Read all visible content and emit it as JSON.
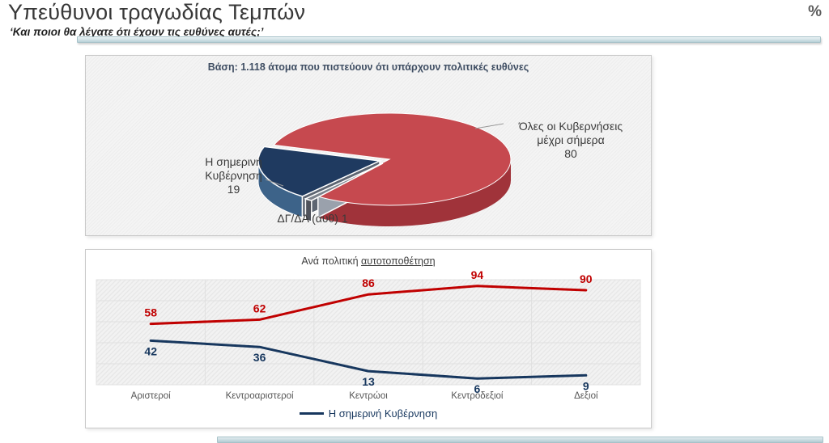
{
  "header": {
    "title": "Υπεύθυνοι τραγωδίας Τεμπών",
    "subtitle": "‘Και ποιοι θα λέγατε ότι έχουν τις ευθύνες αυτές;’",
    "unit_label": "%"
  },
  "pie_panel": {
    "base_note": "Βάση: 1.118 άτομα που πιστεύουν ότι υπάρχουν πολιτικές ευθύνες",
    "labels": {
      "right_lines": [
        "Όλες οι Κυβερνήσεις",
        "μέχρι σήμερα"
      ],
      "left_lines": [
        "Η σημερινή",
        "Κυβέρνηση"
      ]
    }
  },
  "line_panel": {
    "title_prefix": "Ανά πολιτική",
    "title_underlined": "αυτοτοποθέτηση",
    "legend_label": "Η σημερινή Κυβέρνηση"
  },
  "chart_data": [
    {
      "type": "pie",
      "style": "3d",
      "base_label": "Βάση: 1.118 άτομα που πιστεύουν ότι υπάρχουν πολιτικές ευθύνες",
      "slices": [
        {
          "label": "Όλες οι Κυβερνήσεις μέχρι σήμερα",
          "value": 80,
          "color": "#c6494f",
          "side_color": "#a0333a"
        },
        {
          "label": "ΔΓ/ΔΑ (αυθ)",
          "value": 1,
          "color": "#7c828c",
          "side_color": "#4f525b"
        },
        {
          "label": "Η σημερινή Κυβέρνηση",
          "value": 19,
          "color": "#1f3a60",
          "side_color": "#3d6389"
        }
      ]
    },
    {
      "type": "line",
      "title": "Ανά πολιτική αυτοτοποθέτηση",
      "categories": [
        "Αριστεροί",
        "Κεντροαριστεροί",
        "Κεντρώοι",
        "Κεντροδεξιοί",
        "Δεξιοί"
      ],
      "series": [
        {
          "name": "Όλες οι Κυβερνήσεις μέχρι σήμερα",
          "values": [
            58,
            62,
            86,
            94,
            90
          ],
          "color": "#c00000"
        },
        {
          "name": "Η σημερινή Κυβέρνηση",
          "values": [
            42,
            36,
            13,
            6,
            9
          ],
          "color": "#17375e"
        }
      ],
      "ylim": [
        0,
        100
      ],
      "grid": true,
      "legend_position": "bottom",
      "legend_entries": [
        "Η σημερινή Κυβέρνηση"
      ]
    }
  ]
}
